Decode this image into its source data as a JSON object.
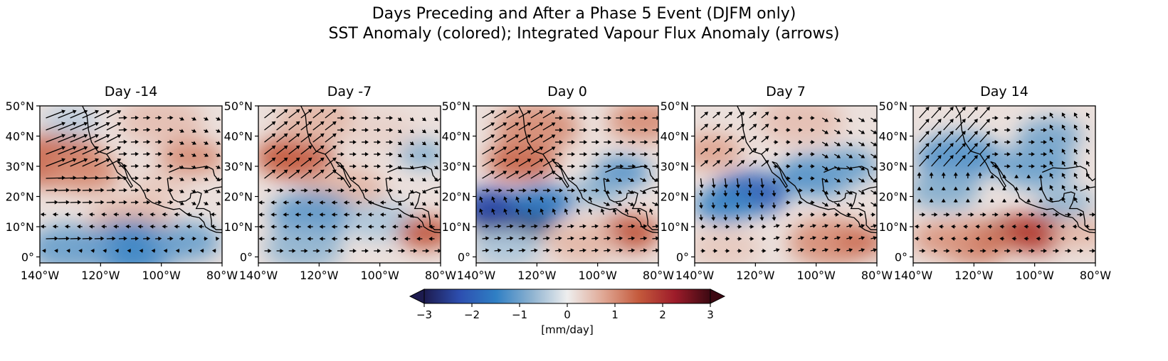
{
  "figure": {
    "title_line1": "Days Preceding and After a Phase 5 Event (DJFM only)",
    "title_line2": "SST Anomaly (colored); Integrated Vapour Flux Anomaly (arrows)"
  },
  "panels": [
    {
      "title": "Day -14"
    },
    {
      "title": "Day -7"
    },
    {
      "title": "Day 0"
    },
    {
      "title": "Day 7"
    },
    {
      "title": "Day 14"
    }
  ],
  "axes": {
    "lon_ticks": [
      "140°W",
      "120°W",
      "100°W",
      "80°W"
    ],
    "lat_ticks": [
      "50°N",
      "40°N",
      "30°N",
      "20°N",
      "10°N",
      "0°"
    ],
    "lon_values": [
      -140,
      -120,
      -100,
      -80
    ],
    "lat_values": [
      50,
      40,
      30,
      20,
      10,
      0
    ],
    "lon_range": [
      -140,
      -80
    ],
    "lat_range": [
      -2,
      50
    ]
  },
  "colorbar": {
    "ticks": [
      "−3",
      "−2",
      "−1",
      "0",
      "1",
      "2",
      "3"
    ],
    "tick_values": [
      -3,
      -2,
      -1,
      0,
      1,
      2,
      3
    ],
    "range": [
      -3,
      3
    ],
    "label": "[mm/day]",
    "extend": "both",
    "colormap": [
      "#1d1b4f",
      "#2d4fb0",
      "#2f7fc4",
      "#8db2d0",
      "#eeeeee",
      "#e0a895",
      "#c45a3c",
      "#9e1c2a",
      "#3c0912"
    ]
  },
  "colors": {
    "coast": "#000000",
    "arrow": "#000000"
  }
}
